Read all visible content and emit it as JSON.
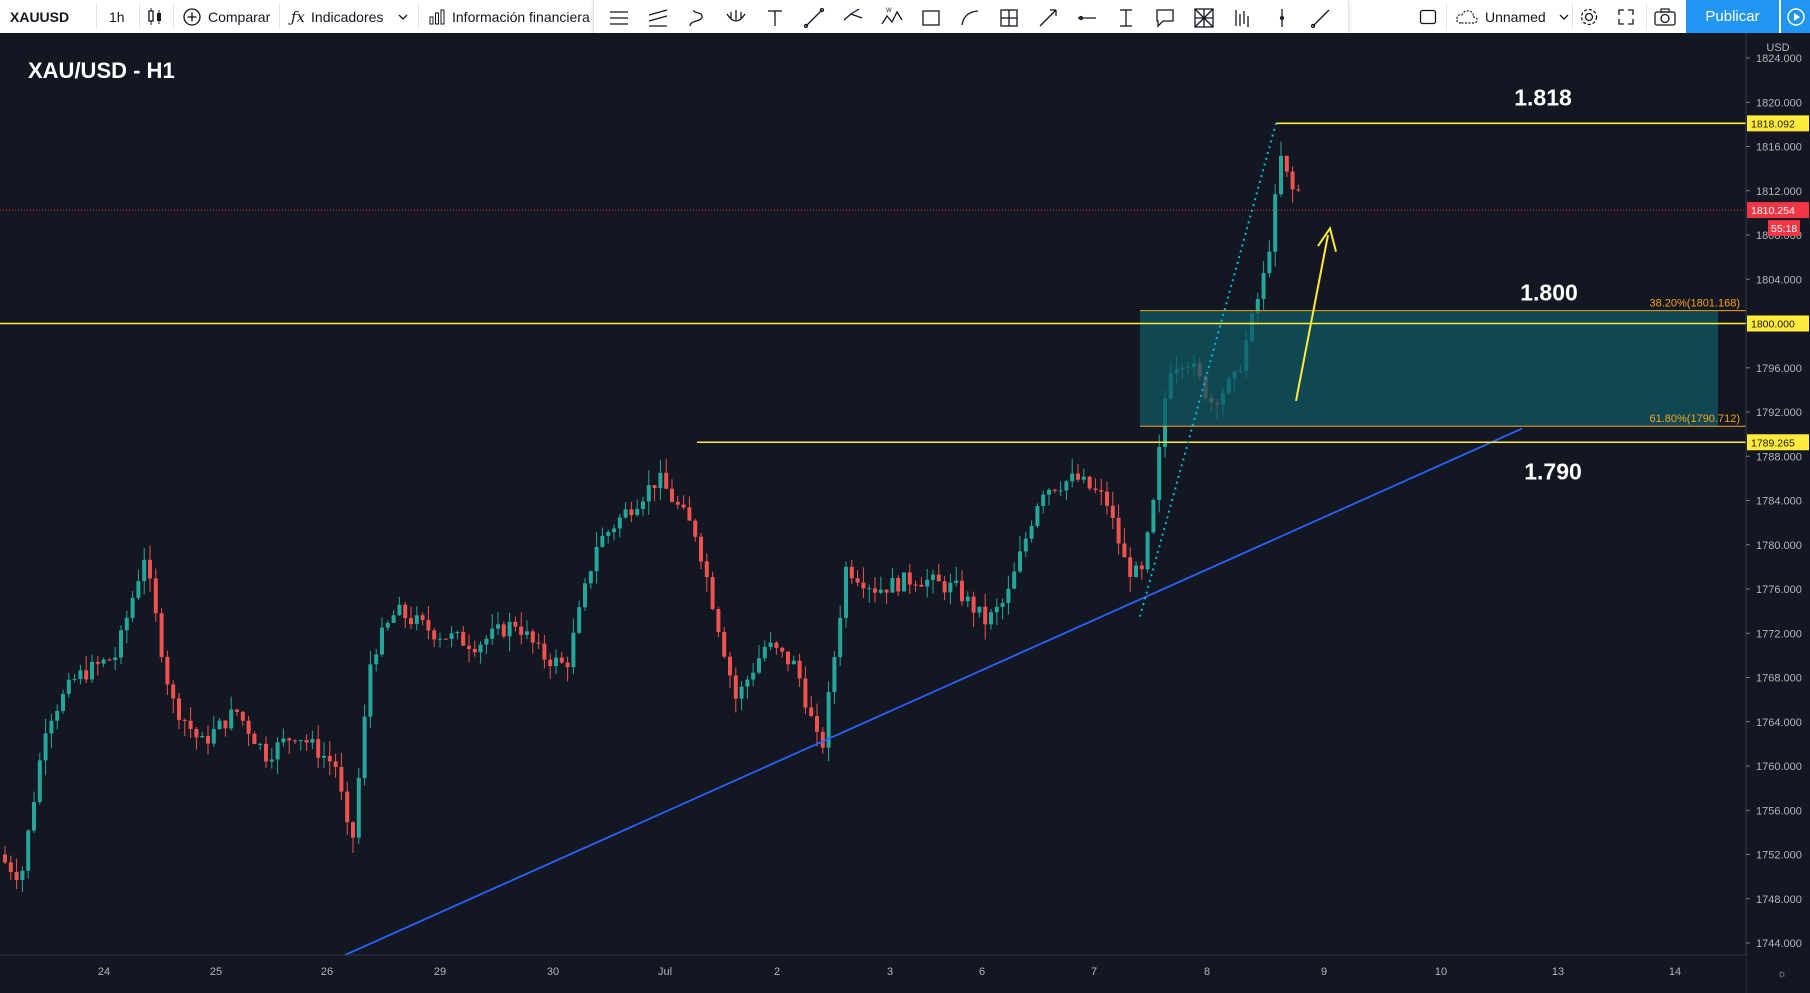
{
  "toolbar": {
    "symbol": "XAUUSD",
    "interval": "1h",
    "compare_label": "Comparar",
    "indicators_label": "Indicadores",
    "financial_info_label": "Información financiera",
    "layout_name": "Unnamed",
    "publish_label": "Publicar"
  },
  "drawing_tools": [
    "horizontal-lines-icon",
    "parallel-channel-icon",
    "brush-icon",
    "pitchfork-icon",
    "text-tool-icon",
    "trend-line-icon",
    "path-icon",
    "xabcd-pattern-icon",
    "rectangle-icon",
    "arc-icon",
    "long-position-icon",
    "measure-icon",
    "horizontal-ray-icon",
    "vertical-text-icon",
    "callout-icon",
    "gann-box-icon",
    "bars-pattern-icon",
    "vertical-line-icon",
    "ray-icon"
  ],
  "chart": {
    "title": "XAU/USD - H1",
    "currency": "USD",
    "label_1818": "1.818",
    "label_1800": "1.800",
    "label_1790": "1.790",
    "fib_382": "38.20%(1801.168)",
    "fib_618": "61.80%(1790.712)",
    "price_1818": "1818.092",
    "price_1800": "1800.000",
    "price_1789": "1789.265",
    "price_current": "1810.254",
    "countdown": "55:18",
    "y_ticks": [
      "1824.000",
      "1820.000",
      "1816.000",
      "1812.000",
      "1808.000",
      "1804.000",
      "1800.000",
      "1796.000",
      "1792.000",
      "1788.000",
      "1784.000",
      "1780.000",
      "1776.000",
      "1772.000",
      "1768.000",
      "1764.000",
      "1760.000",
      "1756.000",
      "1752.000",
      "1748.000",
      "1744.000"
    ],
    "x_ticks": [
      "24",
      "25",
      "26",
      "29",
      "30",
      "Jul",
      "2",
      "3",
      "6",
      "7",
      "8",
      "9",
      "10",
      "13",
      "14"
    ]
  },
  "colors": {
    "background": "#131722",
    "bull": "#26a69a",
    "bear": "#ef5350",
    "level_line": "#ffeb3b",
    "trend_line": "#2962ff",
    "fib_box": "#0f5a63",
    "fib_border": "#f7a21b",
    "current_price": "#f23645",
    "arrow": "#ffeb3b",
    "dotted_line": "#00bcd4"
  }
}
